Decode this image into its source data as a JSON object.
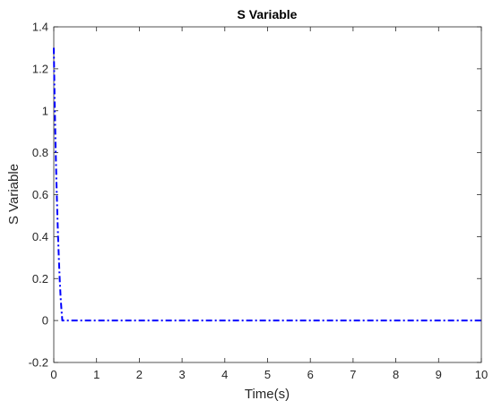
{
  "chart_data": {
    "type": "line",
    "title": "S Variable",
    "xlabel": "Time(s)",
    "ylabel": "S Variable",
    "xlim": [
      0,
      10
    ],
    "ylim": [
      -0.2,
      1.4
    ],
    "xticks": [
      0,
      1,
      2,
      3,
      4,
      5,
      6,
      7,
      8,
      9,
      10
    ],
    "yticks": [
      -0.2,
      0,
      0.2,
      0.4,
      0.6,
      0.8,
      1,
      1.2,
      1.4
    ],
    "xtick_labels": [
      "0",
      "1",
      "2",
      "3",
      "4",
      "5",
      "6",
      "7",
      "8",
      "9",
      "10"
    ],
    "ytick_labels": [
      "-0.2",
      "0",
      "0.2",
      "0.4",
      "0.6",
      "0.8",
      "1",
      "1.2",
      "1.4"
    ],
    "grid": false,
    "line_style": "dash-dot",
    "line_color": "#0000ff",
    "series": [
      {
        "x": [
          0,
          0.02,
          0.04,
          0.06,
          0.08,
          0.1,
          0.12,
          0.14,
          0.16,
          0.18,
          0.2,
          0.5,
          1,
          2,
          3,
          4,
          5,
          6,
          7,
          8,
          9,
          10
        ],
        "y": [
          1.3,
          1.05,
          0.85,
          0.68,
          0.53,
          0.4,
          0.29,
          0.19,
          0.11,
          0.05,
          0.0,
          0.0,
          0.0,
          0.0,
          0.0,
          0.0,
          0.0,
          0.0,
          0.0,
          0.0,
          0.0,
          0.0
        ]
      }
    ]
  }
}
